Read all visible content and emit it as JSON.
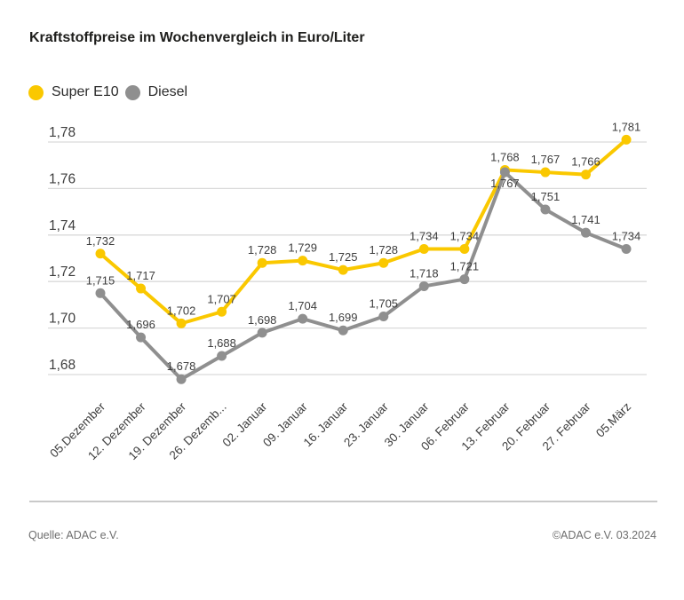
{
  "title": "Kraftstoffpreise im Wochenvergleich in Euro/Liter",
  "footer": {
    "source": "Quelle: ADAC e.V.",
    "copyright": "©ADAC e.V. 03.2024"
  },
  "chart_data": {
    "type": "line",
    "title": "Kraftstoffpreise im Wochenvergleich in Euro/Liter",
    "unit": "Euro/Liter",
    "grid": true,
    "legend_position": "top-left",
    "categories": [
      "05.Dezember",
      "12. Dezember",
      "19. Dezember",
      "26. Dezemb...",
      "02. Januar",
      "09. Januar",
      "16. Januar",
      "23. Januar",
      "30. Januar",
      "06. Februar",
      "13. Februar",
      "20. Februar",
      "27. Februar",
      "05.März"
    ],
    "yticks": [
      "1,78",
      "1,76",
      "1,74",
      "1,72",
      "1,70",
      "1,68"
    ],
    "ylim": [
      1.67,
      1.79
    ],
    "series": [
      {
        "name": "Super E10",
        "color": "#FAC800",
        "values": [
          1.732,
          1.717,
          1.702,
          1.707,
          1.728,
          1.729,
          1.725,
          1.728,
          1.734,
          1.734,
          1.768,
          1.767,
          1.766,
          1.781
        ],
        "labels": [
          "1,732",
          "1,717",
          "1,702",
          "1,707",
          "1,728",
          "1,729",
          "1,725",
          "1,728",
          "1,734",
          "1,734",
          "1,768",
          "1,767",
          "1,766",
          "1,781"
        ]
      },
      {
        "name": "Diesel",
        "color": "#8F8F8F",
        "values": [
          1.715,
          1.696,
          1.678,
          1.688,
          1.698,
          1.704,
          1.699,
          1.705,
          1.718,
          1.721,
          1.767,
          1.751,
          1.741,
          1.734
        ],
        "labels": [
          "1,715",
          "1,696",
          "1,678",
          "1,688",
          "1,698",
          "1,704",
          "1,699",
          "1,705",
          "1,718",
          "1,721",
          "1,767",
          "1,751",
          "1,741",
          "1,734"
        ]
      }
    ],
    "colors": {
      "grid": "#D9D9D9",
      "data_label": "#3E3E3E",
      "axis_label": "#3E3E3E"
    }
  }
}
